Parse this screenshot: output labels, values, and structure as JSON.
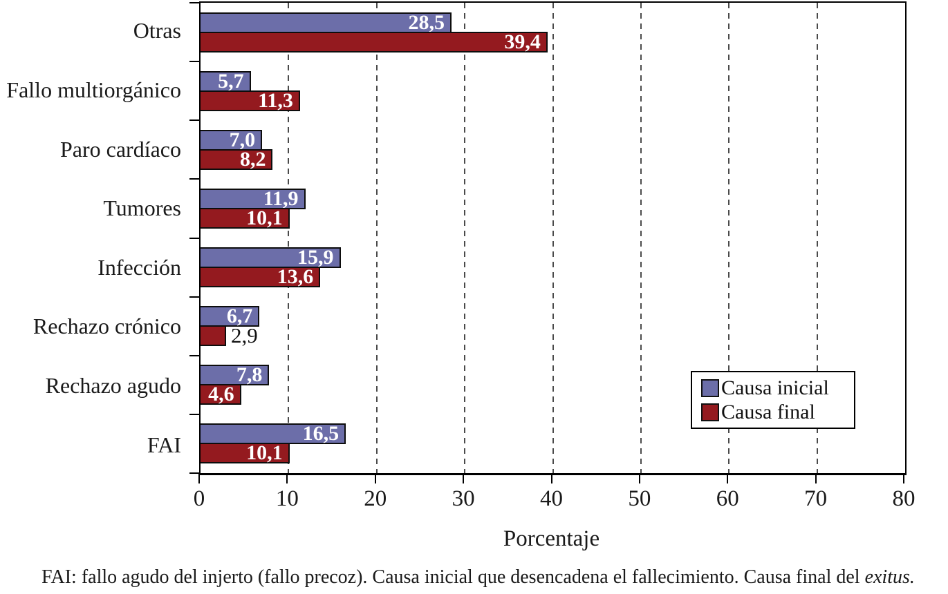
{
  "chart_data": {
    "type": "bar",
    "orientation": "horizontal",
    "title": "",
    "xlabel": "Porcentaje",
    "ylabel": "",
    "xlim": [
      0,
      80
    ],
    "xticks": [
      0,
      10,
      20,
      30,
      40,
      50,
      60,
      70,
      80
    ],
    "grid": "vertical-dashed",
    "legend_position": "right-center",
    "categories": [
      "Otras",
      "Fallo multiorgánico",
      "Paro cardíaco",
      "Tumores",
      "Infección",
      "Rechazo crónico",
      "Rechazo agudo",
      "FAI"
    ],
    "series": [
      {
        "name": "Causa inicial",
        "color": "#6c6ea9",
        "values": [
          28.5,
          5.7,
          7.0,
          11.9,
          15.9,
          6.7,
          7.8,
          16.5
        ],
        "labels": [
          "28,5",
          "5,7",
          "7,0",
          "11,9",
          "15,9",
          "6,7",
          "7,8",
          "16,5"
        ],
        "label_outside": [
          false,
          false,
          false,
          false,
          false,
          false,
          false,
          false
        ]
      },
      {
        "name": "Causa final",
        "color": "#941a1f",
        "values": [
          39.4,
          11.3,
          8.2,
          10.1,
          13.6,
          2.9,
          4.6,
          10.1
        ],
        "labels": [
          "39,4",
          "11,3",
          "8,2",
          "10,1",
          "13,6",
          "2,9",
          "4,6",
          "10,1"
        ],
        "label_outside": [
          false,
          false,
          false,
          false,
          false,
          true,
          false,
          false
        ]
      }
    ]
  },
  "legend": {
    "entries": [
      {
        "label": "Causa inicial",
        "color": "#6c6ea9"
      },
      {
        "label": "Causa final",
        "color": "#941a1f"
      }
    ]
  },
  "footer": {
    "text_before_italic": "FAI: fallo agudo del injerto (fallo precoz). Causa inicial que desencadena el fallecimiento. Causa final del ",
    "italic_text": "exitus."
  },
  "colors": {
    "background": "#ffffff",
    "bar_border": "#0d0d0d",
    "axis": "#000000",
    "grid": "#4a4a4a",
    "value_label_inside": "#ffffff",
    "value_label_outside": "#111111"
  }
}
